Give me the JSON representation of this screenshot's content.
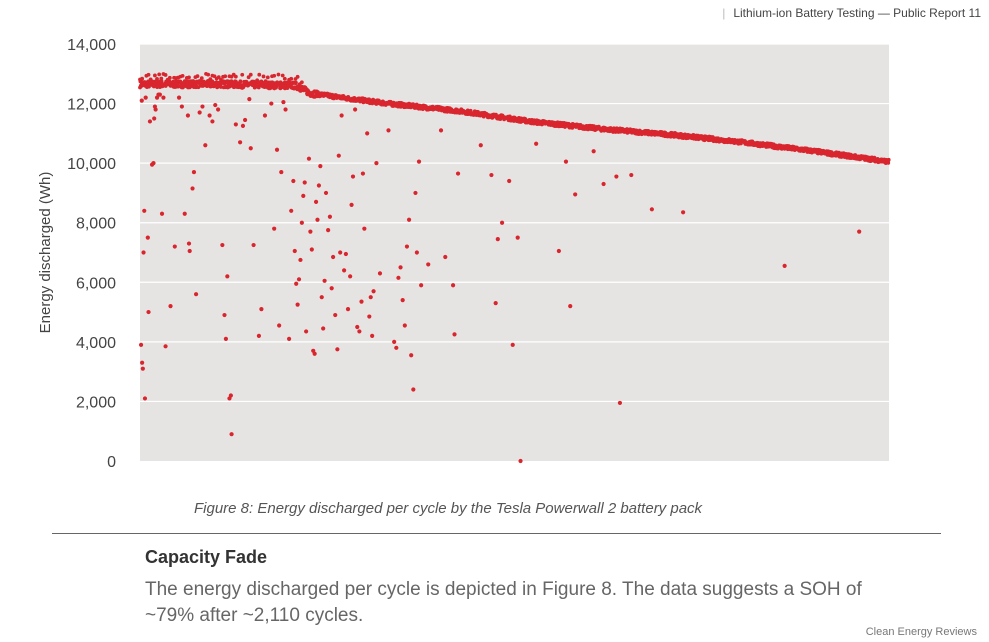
{
  "header": {
    "title": "Lithium-ion Battery Testing — Public Report 11"
  },
  "chart_data": {
    "type": "scatter",
    "ylabel": "Energy discharged (Wh)",
    "xlabel": "",
    "ylim": [
      0,
      14000
    ],
    "yticks": [
      0,
      2000,
      4000,
      6000,
      8000,
      10000,
      12000,
      14000
    ],
    "ytick_labels": [
      "0",
      "2,000",
      "4,000",
      "6,000",
      "8,000",
      "10,000",
      "12,000",
      "14,000"
    ],
    "xlim": [
      0,
      2110
    ],
    "grid": true,
    "marker_color": "#d9262e",
    "plot_background": "#e6e4e3",
    "series": [
      {
        "main_trend": [
          [
            0,
            12650
          ],
          [
            240,
            12650
          ],
          [
            440,
            12600
          ],
          [
            480,
            12350
          ],
          [
            600,
            12150
          ],
          [
            700,
            12000
          ],
          [
            900,
            11750
          ],
          [
            1100,
            11400
          ],
          [
            1300,
            11150
          ],
          [
            1500,
            10950
          ],
          [
            1700,
            10700
          ],
          [
            1900,
            10400
          ],
          [
            2110,
            10050
          ]
        ],
        "outliers": [
          [
            3,
            3900
          ],
          [
            6,
            3300
          ],
          [
            8,
            3100
          ],
          [
            10,
            7000
          ],
          [
            12,
            8400
          ],
          [
            14,
            2100
          ],
          [
            22,
            7500
          ],
          [
            24,
            5000
          ],
          [
            34,
            9950
          ],
          [
            38,
            10000
          ],
          [
            40,
            11500
          ],
          [
            42,
            11900
          ],
          [
            48,
            12200
          ],
          [
            52,
            12300
          ],
          [
            62,
            8300
          ],
          [
            72,
            3850
          ],
          [
            86,
            5200
          ],
          [
            98,
            7200
          ],
          [
            110,
            12200
          ],
          [
            118,
            11900
          ],
          [
            126,
            8300
          ],
          [
            135,
            11600
          ],
          [
            138,
            7300
          ],
          [
            140,
            7050
          ],
          [
            148,
            9150
          ],
          [
            152,
            9700
          ],
          [
            158,
            5600
          ],
          [
            168,
            11700
          ],
          [
            176,
            11900
          ],
          [
            184,
            10600
          ],
          [
            196,
            11600
          ],
          [
            204,
            11400
          ],
          [
            212,
            11950
          ],
          [
            220,
            11800
          ],
          [
            232,
            7250
          ],
          [
            238,
            4900
          ],
          [
            242,
            4100
          ],
          [
            246,
            6200
          ],
          [
            252,
            2100
          ],
          [
            256,
            2200
          ],
          [
            258,
            900
          ],
          [
            270,
            11300
          ],
          [
            282,
            10700
          ],
          [
            290,
            11250
          ],
          [
            296,
            11450
          ],
          [
            308,
            12150
          ],
          [
            312,
            10500
          ],
          [
            320,
            7250
          ],
          [
            335,
            4200
          ],
          [
            342,
            5100
          ],
          [
            352,
            11600
          ],
          [
            370,
            12000
          ],
          [
            378,
            7800
          ],
          [
            386,
            10450
          ],
          [
            392,
            4550
          ],
          [
            398,
            9700
          ],
          [
            404,
            12050
          ],
          [
            410,
            11800
          ],
          [
            420,
            4100
          ],
          [
            426,
            8400
          ],
          [
            432,
            9400
          ],
          [
            436,
            7050
          ],
          [
            440,
            5950
          ],
          [
            444,
            5250
          ],
          [
            448,
            6100
          ],
          [
            452,
            6750
          ],
          [
            456,
            8000
          ],
          [
            460,
            8900
          ],
          [
            464,
            9350
          ],
          [
            468,
            4350
          ],
          [
            476,
            10150
          ],
          [
            480,
            7700
          ],
          [
            484,
            7100
          ],
          [
            488,
            3700
          ],
          [
            492,
            3600
          ],
          [
            496,
            8700
          ],
          [
            500,
            8100
          ],
          [
            504,
            9250
          ],
          [
            508,
            9900
          ],
          [
            512,
            5500
          ],
          [
            516,
            4450
          ],
          [
            520,
            6050
          ],
          [
            524,
            9000
          ],
          [
            530,
            7750
          ],
          [
            535,
            8200
          ],
          [
            540,
            5800
          ],
          [
            544,
            6850
          ],
          [
            550,
            4900
          ],
          [
            556,
            3750
          ],
          [
            560,
            10250
          ],
          [
            564,
            7000
          ],
          [
            568,
            11600
          ],
          [
            575,
            6400
          ],
          [
            580,
            6950
          ],
          [
            586,
            5100
          ],
          [
            592,
            6200
          ],
          [
            596,
            8600
          ],
          [
            600,
            9550
          ],
          [
            606,
            11800
          ],
          [
            612,
            4500
          ],
          [
            618,
            4350
          ],
          [
            624,
            5350
          ],
          [
            628,
            9650
          ],
          [
            632,
            7800
          ],
          [
            640,
            11000
          ],
          [
            646,
            4850
          ],
          [
            650,
            5500
          ],
          [
            654,
            4200
          ],
          [
            658,
            5700
          ],
          [
            666,
            10000
          ],
          [
            676,
            6300
          ],
          [
            700,
            11100
          ],
          [
            716,
            4000
          ],
          [
            722,
            3800
          ],
          [
            728,
            6150
          ],
          [
            734,
            6500
          ],
          [
            740,
            5400
          ],
          [
            746,
            4550
          ],
          [
            752,
            7200
          ],
          [
            758,
            8100
          ],
          [
            764,
            3550
          ],
          [
            770,
            2400
          ],
          [
            776,
            9000
          ],
          [
            780,
            7000
          ],
          [
            786,
            10050
          ],
          [
            792,
            5900
          ],
          [
            812,
            6600
          ],
          [
            848,
            11100
          ],
          [
            860,
            6850
          ],
          [
            882,
            5900
          ],
          [
            886,
            4250
          ],
          [
            896,
            9650
          ],
          [
            960,
            10600
          ],
          [
            990,
            9600
          ],
          [
            1002,
            5300
          ],
          [
            1008,
            7450
          ],
          [
            1020,
            8000
          ],
          [
            1040,
            9400
          ],
          [
            1050,
            3900
          ],
          [
            1064,
            7500
          ],
          [
            1072,
            0
          ],
          [
            1116,
            10650
          ],
          [
            1180,
            7050
          ],
          [
            1200,
            10050
          ],
          [
            1212,
            5200
          ],
          [
            1226,
            8950
          ],
          [
            1278,
            10400
          ],
          [
            1306,
            9300
          ],
          [
            1342,
            9550
          ],
          [
            1352,
            1950
          ],
          [
            1384,
            9600
          ],
          [
            1442,
            8450
          ],
          [
            1530,
            8350
          ],
          [
            1816,
            6550
          ],
          [
            2026,
            7700
          ],
          [
            5,
            12100
          ],
          [
            16,
            12200
          ],
          [
            28,
            11400
          ],
          [
            44,
            11800
          ],
          [
            56,
            12300
          ],
          [
            66,
            12200
          ]
        ]
      }
    ]
  },
  "caption": "Figure 8: Energy discharged per cycle by the Tesla Powerwall 2 battery pack",
  "section_title": "Capacity Fade",
  "body_text": "The energy discharged per cycle is depicted in Figure 8. The data suggests a SOH of ~79% after ~2,110 cycles.",
  "footer": "Clean Energy Reviews"
}
